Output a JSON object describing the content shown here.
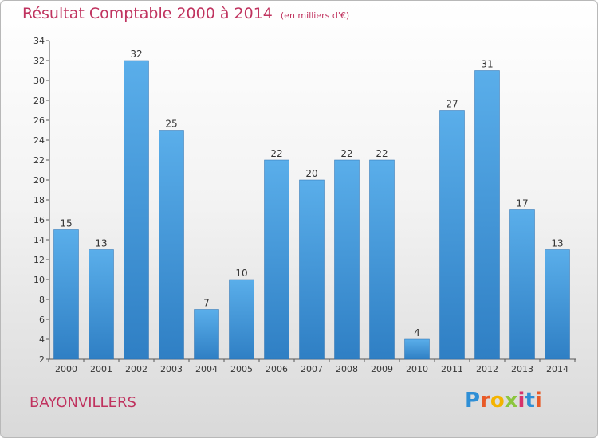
{
  "header": {
    "title": "Résultat Comptable 2000 à 2014",
    "unit": "(en milliers d'€)"
  },
  "footer": {
    "place": "BAYONVILLERS",
    "logo_letters": [
      "P",
      "r",
      "o",
      "x",
      "i",
      "t",
      "i"
    ],
    "logo_colors": [
      "#2f8fd6",
      "#e85a28",
      "#f4b400",
      "#8cc63e",
      "#d6336c",
      "#2f8fd6",
      "#e85a28"
    ]
  },
  "colors": {
    "bar_top": "#5aaeea",
    "bar_bottom": "#2f7fc4",
    "title": "#c0335f"
  },
  "chart_data": {
    "type": "bar",
    "title": "Résultat Comptable 2000 à 2014",
    "categories": [
      "2000",
      "2001",
      "2002",
      "2003",
      "2004",
      "2005",
      "2006",
      "2007",
      "2008",
      "2009",
      "2010",
      "2011",
      "2012",
      "2013",
      "2014"
    ],
    "values": [
      15,
      13,
      32,
      25,
      7,
      10,
      22,
      20,
      22,
      22,
      4,
      27,
      31,
      17,
      13
    ],
    "ylim": [
      2,
      34
    ],
    "yticks": [
      2,
      4,
      6,
      8,
      10,
      12,
      14,
      16,
      18,
      20,
      22,
      24,
      26,
      28,
      30,
      32,
      34
    ],
    "grid": false,
    "data_labels": true
  }
}
